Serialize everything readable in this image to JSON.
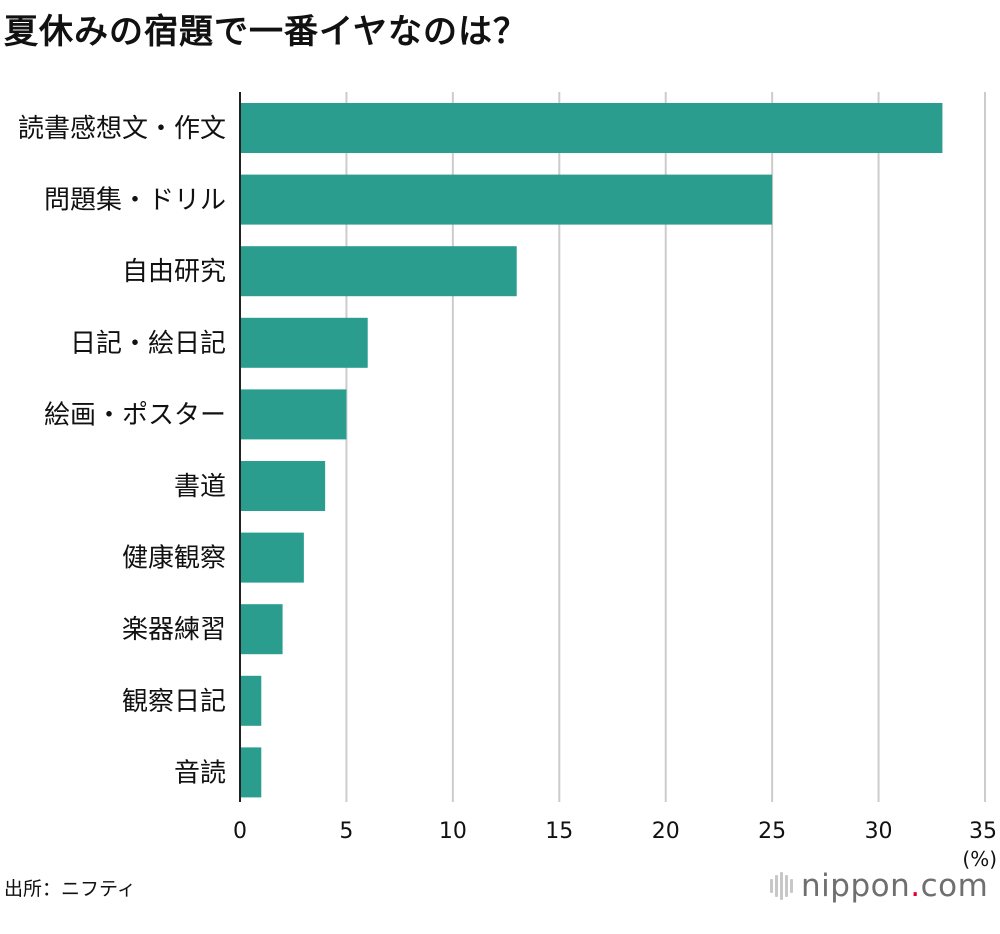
{
  "title": "夏休みの宿題で一番イヤなのは？",
  "source": "出所：ニフティ",
  "logo": {
    "name": "nippon",
    "dot": ".",
    "tld": "com",
    "accent_color": "#e4002b"
  },
  "chart_data": {
    "type": "bar",
    "orientation": "horizontal",
    "title": "夏休みの宿題で一番イヤなのは？",
    "unit_label": "(%)",
    "categories": [
      "読書感想文・作文",
      "問題集・ドリル",
      "自由研究",
      "日記・絵日記",
      "絵画・ポスター",
      "書道",
      "健康観察",
      "楽器練習",
      "観察日記",
      "音読"
    ],
    "values": [
      33,
      25,
      13,
      6,
      5,
      4,
      3,
      2,
      1,
      1
    ],
    "xlim": [
      0,
      35
    ],
    "xticks": [
      0,
      5,
      10,
      15,
      20,
      25,
      30,
      35
    ],
    "grid": true,
    "bar_color": "#2a9d8f",
    "grid_color": "#cccccc"
  }
}
